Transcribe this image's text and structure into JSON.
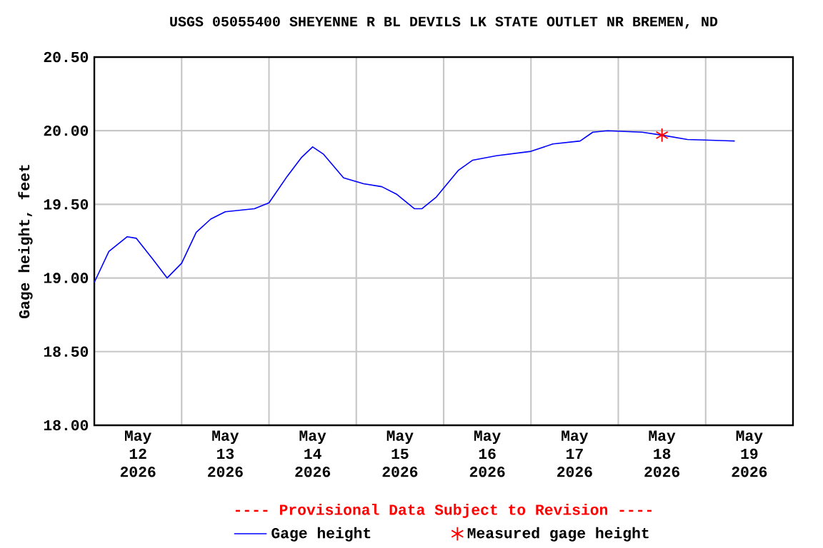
{
  "chart_data": {
    "type": "line",
    "title": "USGS 05055400 SHEYENNE R BL DEVILS LK STATE OUTLET NR BREMEN, ND",
    "ylabel": "Gage height, feet",
    "annotations": [
      "---- Provisional Data Subject to Revision ----"
    ],
    "xlim": [
      "2026-05-12T00:00",
      "2026-05-20T00:00"
    ],
    "xticks": [
      {
        "value": "2026-05-12T12:00",
        "label": "May 12 2026"
      },
      {
        "value": "2026-05-13T12:00",
        "label": "May 13 2026"
      },
      {
        "value": "2026-05-14T12:00",
        "label": "May 14 2026"
      },
      {
        "value": "2026-05-15T12:00",
        "label": "May 15 2026"
      },
      {
        "value": "2026-05-16T12:00",
        "label": "May 16 2026"
      },
      {
        "value": "2026-05-17T12:00",
        "label": "May 17 2026"
      },
      {
        "value": "2026-05-18T12:00",
        "label": "May 18 2026"
      },
      {
        "value": "2026-05-19T12:00",
        "label": "May 19 2026"
      },
      {
        "value": "2026-05-13T00:00",
        "label": null
      },
      {
        "value": "2026-05-14T00:00",
        "label": null
      },
      {
        "value": "2026-05-15T00:00",
        "label": null
      },
      {
        "value": "2026-05-16T00:00",
        "label": null
      },
      {
        "value": "2026-05-17T00:00",
        "label": null
      },
      {
        "value": "2026-05-18T00:00",
        "label": null
      },
      {
        "value": "2026-05-19T00:00",
        "label": null
      }
    ],
    "ylim": [
      18.0,
      20.5
    ],
    "yticks": [
      {
        "value": 18.0,
        "label": "18.00"
      },
      {
        "value": 18.5,
        "label": "18.50"
      },
      {
        "value": 19.0,
        "label": "19.00"
      },
      {
        "value": 19.5,
        "label": "19.50"
      },
      {
        "value": 20.0,
        "label": "20.00"
      },
      {
        "value": 20.5,
        "label": "20.50"
      }
    ],
    "grid": true,
    "legend": "bottom",
    "series": [
      {
        "name": "Gage height",
        "color": "#0000ff",
        "x": [
          "2026-05-12T00:00",
          "2026-05-12T04:00",
          "2026-05-12T09:00",
          "2026-05-12T11:30",
          "2026-05-12T16:00",
          "2026-05-12T20:00",
          "2026-05-13T00:00",
          "2026-05-13T04:00",
          "2026-05-13T08:00",
          "2026-05-13T12:00",
          "2026-05-13T20:00",
          "2026-05-14T00:00",
          "2026-05-14T05:00",
          "2026-05-14T09:00",
          "2026-05-14T12:00",
          "2026-05-14T15:00",
          "2026-05-14T20:30",
          "2026-05-15T02:00",
          "2026-05-15T07:00",
          "2026-05-15T11:00",
          "2026-05-15T16:00",
          "2026-05-15T18:00",
          "2026-05-15T22:00",
          "2026-05-16T04:00",
          "2026-05-16T08:00",
          "2026-05-16T14:30",
          "2026-05-17T00:00",
          "2026-05-17T06:00",
          "2026-05-17T13:30",
          "2026-05-17T17:00",
          "2026-05-17T21:00",
          "2026-05-18T06:30",
          "2026-05-18T12:00",
          "2026-05-18T19:00",
          "2026-05-19T08:00"
        ],
        "values": [
          18.97,
          19.18,
          19.28,
          19.27,
          19.13,
          19.0,
          19.1,
          19.31,
          19.4,
          19.45,
          19.47,
          19.51,
          19.69,
          19.82,
          19.89,
          19.84,
          19.68,
          19.64,
          19.62,
          19.57,
          19.47,
          19.47,
          19.55,
          19.73,
          19.8,
          19.83,
          19.86,
          19.91,
          19.93,
          19.99,
          20.0,
          19.99,
          19.97,
          19.94,
          19.93
        ]
      },
      {
        "name": "Measured gage height",
        "type": "scatter",
        "marker": "cross",
        "color": "#ff0000",
        "x": [
          "2026-05-18T12:00"
        ],
        "values": [
          19.97
        ]
      }
    ]
  }
}
